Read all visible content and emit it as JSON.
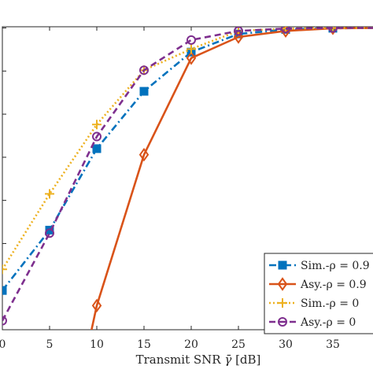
{
  "chart_data": {
    "type": "line",
    "title": "",
    "xlabel": "Transmit SNR $\\bar{\\gamma}$ [dB]",
    "xlabel_parts": {
      "before": "Transmit SNR ",
      "symbol": "γ̄",
      "after": " [dB]"
    },
    "ylabel": "",
    "xlim": [
      0,
      40
    ],
    "ylim": [
      0,
      1
    ],
    "grid": false,
    "legend_position": "bottom-right",
    "x_ticks": [
      0,
      5,
      10,
      15,
      20,
      25,
      30,
      35
    ],
    "x_tick_labels": [
      "0",
      "5",
      "10",
      "15",
      "20",
      "25",
      "30",
      "35"
    ],
    "y_tick_count": 8,
    "x": [
      0,
      5,
      10,
      15,
      20,
      25,
      30,
      35,
      40
    ],
    "series": [
      {
        "name": "Sim.-ρ = 0.9",
        "legend_label": "Sim.-ρ = 0.9",
        "color": "#0072BD",
        "line_style": "dashdot",
        "marker": "square",
        "values": [
          0.13,
          0.33,
          0.6,
          0.79,
          0.92,
          0.98,
          0.995,
          0.999,
          1.0
        ]
      },
      {
        "name": "Asy.-ρ = 0.9",
        "legend_label": "Asy.-ρ = 0.9",
        "color": "#D95319",
        "line_style": "solid",
        "marker": "diamond",
        "x": [
          9.1,
          10,
          15,
          20,
          25,
          30,
          35,
          40
        ],
        "values": [
          -0.05,
          0.08,
          0.58,
          0.9,
          0.97,
          0.99,
          0.999,
          1.0
        ]
      },
      {
        "name": "Sim.-ρ = 0",
        "legend_label": "Sim.-ρ = 0",
        "color": "#EDB120",
        "line_style": "dotted",
        "marker": "plus",
        "values": [
          0.2,
          0.45,
          0.68,
          0.86,
          0.93,
          0.99,
          0.998,
          1.0,
          1.0
        ]
      },
      {
        "name": "Asy.-ρ = 0",
        "legend_label": "Asy.-ρ = 0",
        "color": "#7E2F8E",
        "line_style": "dashed",
        "marker": "circle",
        "values": [
          0.03,
          0.32,
          0.64,
          0.86,
          0.96,
          0.99,
          0.998,
          1.0,
          1.0
        ]
      }
    ]
  }
}
